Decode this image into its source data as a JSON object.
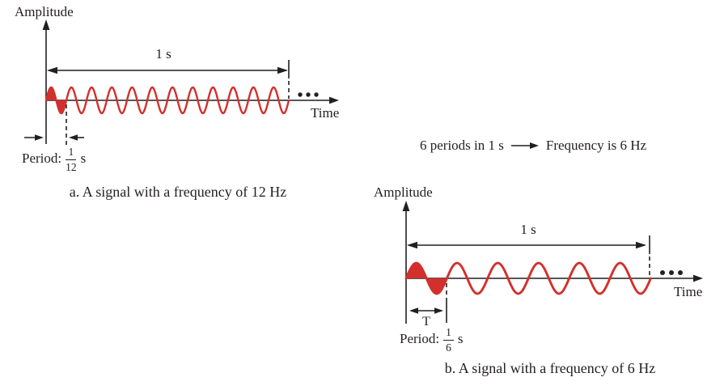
{
  "figure": {
    "colors": {
      "wave": "#d2302c",
      "line": "#231f20",
      "text": "#231f20"
    },
    "annotation": {
      "left_text": "6 periods in 1 s",
      "right_text": "Frequency is 6 Hz"
    },
    "diagram_a": {
      "amplitude_label": "Amplitude",
      "time_label": "Time",
      "duration_label": "1 s",
      "periods": 12,
      "period_prefix": "Period:",
      "period_numerator": "1",
      "period_denominator": "12",
      "period_unit": "s",
      "caption": "a. A signal with a frequency of 12 Hz"
    },
    "diagram_b": {
      "amplitude_label": "Amplitude",
      "time_label": "Time",
      "duration_label": "1 s",
      "periods": 6,
      "period_marker_label": "T",
      "period_prefix": "Period:",
      "period_numerator": "1",
      "period_denominator": "6",
      "period_unit": "s",
      "caption": "b. A signal with a frequency of 6 Hz"
    }
  }
}
